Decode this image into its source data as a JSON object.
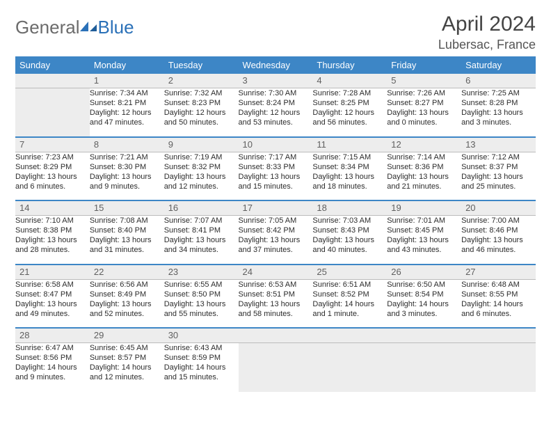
{
  "brand": {
    "part1": "General",
    "part2": "Blue"
  },
  "title": "April 2024",
  "location": "Lubersac, France",
  "colors": {
    "header_bg": "#3d86c6",
    "header_text": "#ffffff",
    "daynum_bg": "#ededed",
    "row_divider": "#3d86c6",
    "brand_grey": "#6b6b6b",
    "brand_blue": "#2b71b8"
  },
  "typography": {
    "title_fontsize": 30,
    "location_fontsize": 18,
    "dayhead_fontsize": 13,
    "cell_fontsize": 11
  },
  "days": [
    "Sunday",
    "Monday",
    "Tuesday",
    "Wednesday",
    "Thursday",
    "Friday",
    "Saturday"
  ],
  "weeks": [
    [
      {
        "n": "",
        "sunrise": "",
        "sunset": "",
        "daylight": ""
      },
      {
        "n": "1",
        "sunrise": "7:34 AM",
        "sunset": "8:21 PM",
        "daylight": "12 hours and 47 minutes."
      },
      {
        "n": "2",
        "sunrise": "7:32 AM",
        "sunset": "8:23 PM",
        "daylight": "12 hours and 50 minutes."
      },
      {
        "n": "3",
        "sunrise": "7:30 AM",
        "sunset": "8:24 PM",
        "daylight": "12 hours and 53 minutes."
      },
      {
        "n": "4",
        "sunrise": "7:28 AM",
        "sunset": "8:25 PM",
        "daylight": "12 hours and 56 minutes."
      },
      {
        "n": "5",
        "sunrise": "7:26 AM",
        "sunset": "8:27 PM",
        "daylight": "13 hours and 0 minutes."
      },
      {
        "n": "6",
        "sunrise": "7:25 AM",
        "sunset": "8:28 PM",
        "daylight": "13 hours and 3 minutes."
      }
    ],
    [
      {
        "n": "7",
        "sunrise": "7:23 AM",
        "sunset": "8:29 PM",
        "daylight": "13 hours and 6 minutes."
      },
      {
        "n": "8",
        "sunrise": "7:21 AM",
        "sunset": "8:30 PM",
        "daylight": "13 hours and 9 minutes."
      },
      {
        "n": "9",
        "sunrise": "7:19 AM",
        "sunset": "8:32 PM",
        "daylight": "13 hours and 12 minutes."
      },
      {
        "n": "10",
        "sunrise": "7:17 AM",
        "sunset": "8:33 PM",
        "daylight": "13 hours and 15 minutes."
      },
      {
        "n": "11",
        "sunrise": "7:15 AM",
        "sunset": "8:34 PM",
        "daylight": "13 hours and 18 minutes."
      },
      {
        "n": "12",
        "sunrise": "7:14 AM",
        "sunset": "8:36 PM",
        "daylight": "13 hours and 21 minutes."
      },
      {
        "n": "13",
        "sunrise": "7:12 AM",
        "sunset": "8:37 PM",
        "daylight": "13 hours and 25 minutes."
      }
    ],
    [
      {
        "n": "14",
        "sunrise": "7:10 AM",
        "sunset": "8:38 PM",
        "daylight": "13 hours and 28 minutes."
      },
      {
        "n": "15",
        "sunrise": "7:08 AM",
        "sunset": "8:40 PM",
        "daylight": "13 hours and 31 minutes."
      },
      {
        "n": "16",
        "sunrise": "7:07 AM",
        "sunset": "8:41 PM",
        "daylight": "13 hours and 34 minutes."
      },
      {
        "n": "17",
        "sunrise": "7:05 AM",
        "sunset": "8:42 PM",
        "daylight": "13 hours and 37 minutes."
      },
      {
        "n": "18",
        "sunrise": "7:03 AM",
        "sunset": "8:43 PM",
        "daylight": "13 hours and 40 minutes."
      },
      {
        "n": "19",
        "sunrise": "7:01 AM",
        "sunset": "8:45 PM",
        "daylight": "13 hours and 43 minutes."
      },
      {
        "n": "20",
        "sunrise": "7:00 AM",
        "sunset": "8:46 PM",
        "daylight": "13 hours and 46 minutes."
      }
    ],
    [
      {
        "n": "21",
        "sunrise": "6:58 AM",
        "sunset": "8:47 PM",
        "daylight": "13 hours and 49 minutes."
      },
      {
        "n": "22",
        "sunrise": "6:56 AM",
        "sunset": "8:49 PM",
        "daylight": "13 hours and 52 minutes."
      },
      {
        "n": "23",
        "sunrise": "6:55 AM",
        "sunset": "8:50 PM",
        "daylight": "13 hours and 55 minutes."
      },
      {
        "n": "24",
        "sunrise": "6:53 AM",
        "sunset": "8:51 PM",
        "daylight": "13 hours and 58 minutes."
      },
      {
        "n": "25",
        "sunrise": "6:51 AM",
        "sunset": "8:52 PM",
        "daylight": "14 hours and 1 minute."
      },
      {
        "n": "26",
        "sunrise": "6:50 AM",
        "sunset": "8:54 PM",
        "daylight": "14 hours and 3 minutes."
      },
      {
        "n": "27",
        "sunrise": "6:48 AM",
        "sunset": "8:55 PM",
        "daylight": "14 hours and 6 minutes."
      }
    ],
    [
      {
        "n": "28",
        "sunrise": "6:47 AM",
        "sunset": "8:56 PM",
        "daylight": "14 hours and 9 minutes."
      },
      {
        "n": "29",
        "sunrise": "6:45 AM",
        "sunset": "8:57 PM",
        "daylight": "14 hours and 12 minutes."
      },
      {
        "n": "30",
        "sunrise": "6:43 AM",
        "sunset": "8:59 PM",
        "daylight": "14 hours and 15 minutes."
      },
      {
        "n": "",
        "sunrise": "",
        "sunset": "",
        "daylight": ""
      },
      {
        "n": "",
        "sunrise": "",
        "sunset": "",
        "daylight": ""
      },
      {
        "n": "",
        "sunrise": "",
        "sunset": "",
        "daylight": ""
      },
      {
        "n": "",
        "sunrise": "",
        "sunset": "",
        "daylight": ""
      }
    ]
  ]
}
